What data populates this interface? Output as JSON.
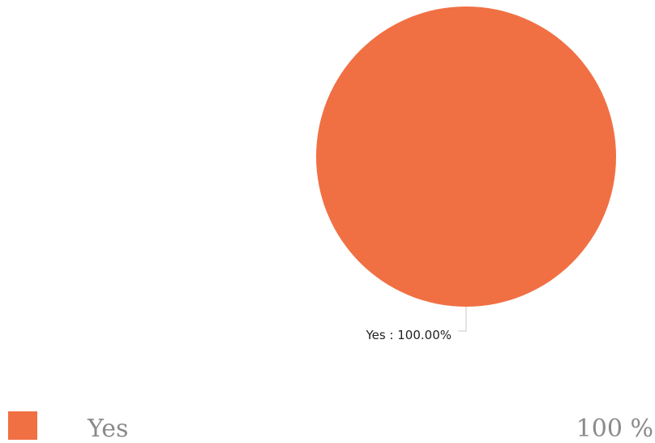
{
  "chart_data": {
    "type": "pie",
    "slices": [
      {
        "label": "Yes",
        "value": 100,
        "color": "#f07044"
      }
    ],
    "data_labels": [
      "Yes : 100.00%"
    ],
    "legend": {
      "placement": "bottom",
      "items": [
        {
          "label": "Yes",
          "value": "100 %",
          "color": "#f07044"
        }
      ]
    }
  }
}
